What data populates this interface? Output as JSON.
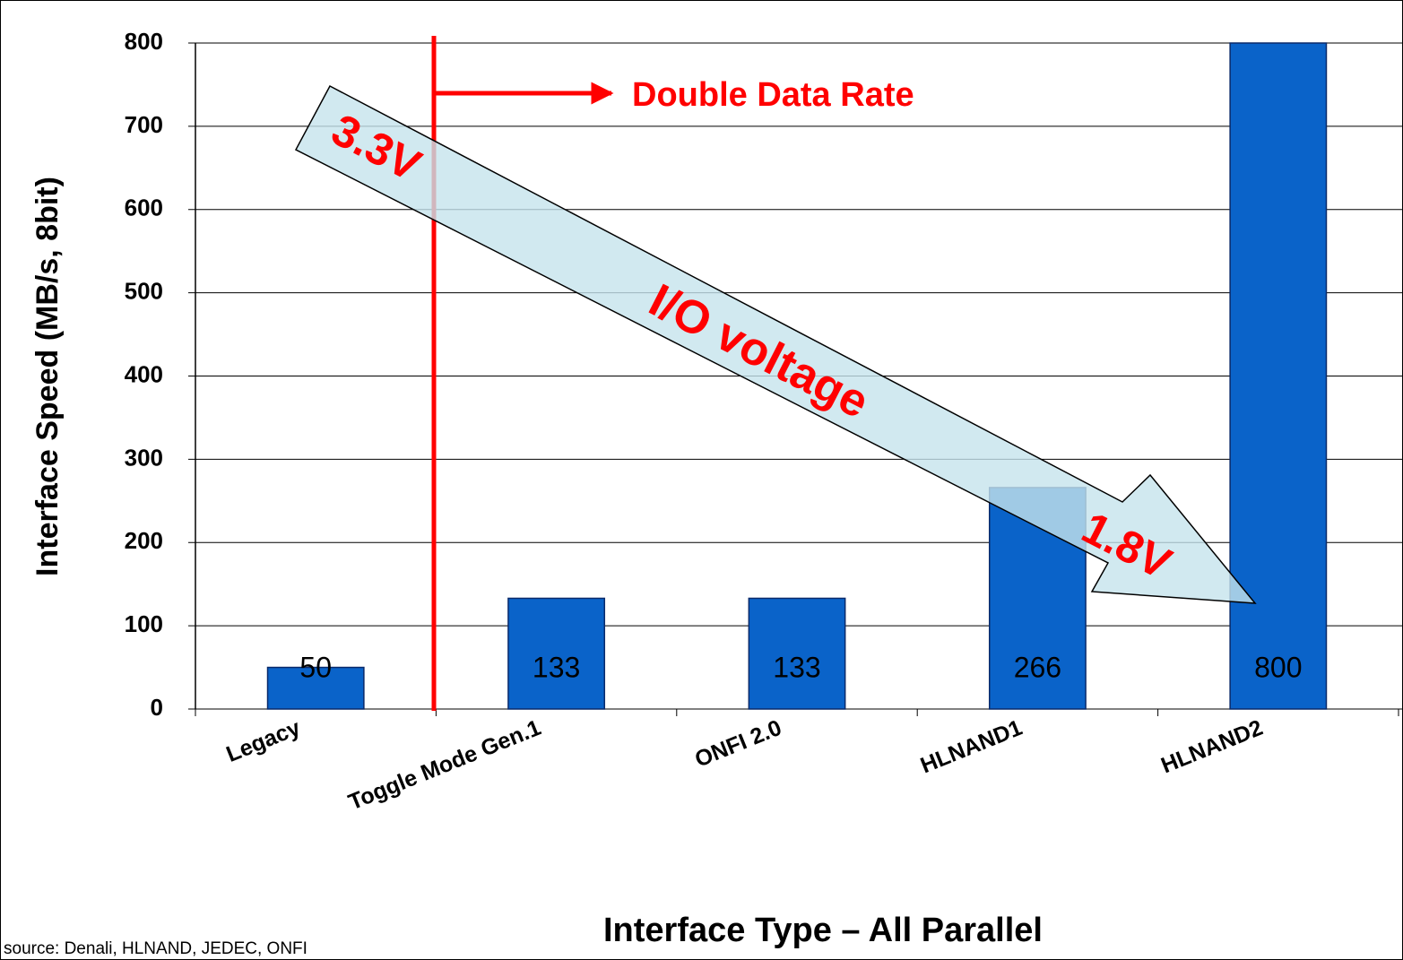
{
  "chart_data": {
    "type": "bar",
    "categories": [
      "Legacy",
      "Toggle Mode Gen.1",
      "ONFI 2.0",
      "HLNAND1",
      "HLNAND2"
    ],
    "values": [
      50,
      133,
      133,
      266,
      800
    ],
    "color": "#0a63c9",
    "ylim": [
      0,
      800
    ],
    "yticks": [
      0,
      100,
      200,
      300,
      400,
      500,
      600,
      700,
      800
    ],
    "grid": true,
    "y_label": "Interface Speed (MB/s, 8bit)",
    "x_label": "Interface Type – All Parallel",
    "annotations": [
      "Double Data Rate",
      "3.3V",
      "I/O voltage",
      "1.8V"
    ],
    "source": "source: Denali, HLNAND, JEDEC, ONFI"
  }
}
